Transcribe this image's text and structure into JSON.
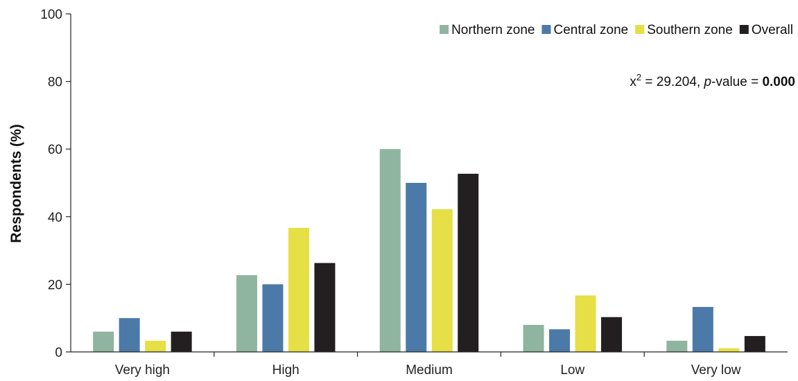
{
  "chart_data": {
    "type": "bar",
    "title": "",
    "xlabel": "",
    "ylabel": "Respondents (%)",
    "ylim": [
      0,
      100
    ],
    "yticks": [
      0,
      20,
      40,
      60,
      80,
      100
    ],
    "grid": false,
    "legend_position": "top-right",
    "categories": [
      "Very high",
      "High",
      "Medium",
      "Low",
      "Very low"
    ],
    "series": [
      {
        "name": "Northern zone",
        "color": "#8fb4a0",
        "values": [
          6,
          22.7,
          60,
          8,
          3.3
        ]
      },
      {
        "name": "Central zone",
        "color": "#4c7aa8",
        "values": [
          10,
          20,
          50,
          6.7,
          13.3
        ]
      },
      {
        "name": "Southern zone",
        "color": "#e6df45",
        "values": [
          3.3,
          36.7,
          42.2,
          16.7,
          1.1
        ]
      },
      {
        "name": "Overall",
        "color": "#231f20",
        "values": [
          6,
          26.3,
          52.7,
          10.3,
          4.7
        ]
      }
    ],
    "annotation": {
      "symbol": "x",
      "superscript": "2",
      "stat_text": " = 29.204, ",
      "p_label": "p",
      "p_suffix": "-value = ",
      "p_value": "0.000"
    }
  }
}
